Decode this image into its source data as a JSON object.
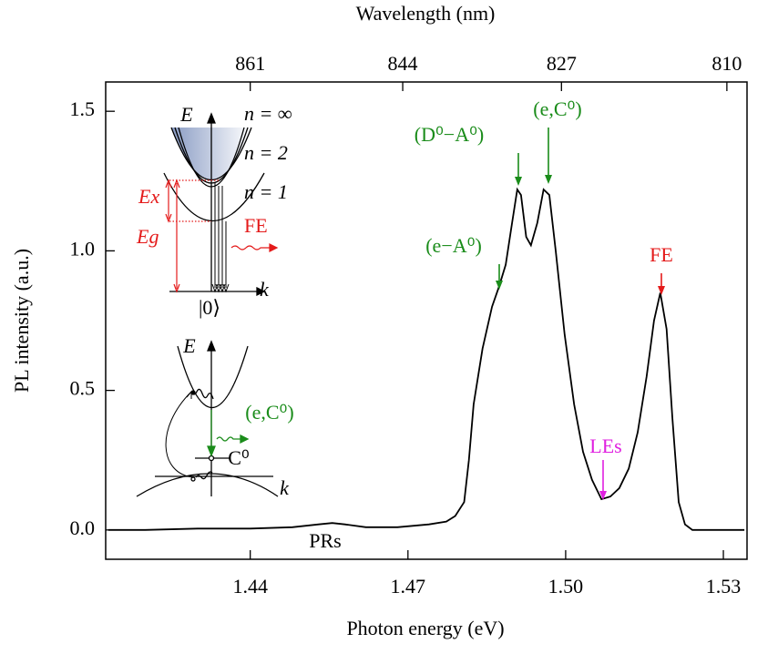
{
  "chart_data": {
    "type": "line",
    "title": "Wavelength (nm)",
    "x_label": "Photon energy (eV)",
    "y_label": "PL intensity (a.u.)",
    "xlim": [
      1.4125,
      1.5345
    ],
    "ylim": [
      -0.105,
      1.605
    ],
    "xticks": [
      1.44,
      1.47,
      {
        "value": 1.5,
        "label": "1.50"
      },
      1.53
    ],
    "yticks": [
      {
        "value": 0,
        "label": "0.0"
      },
      0.5,
      {
        "value": 1,
        "label": "1.0"
      },
      1.5
    ],
    "x2ticks": [
      861,
      844,
      827,
      810
    ],
    "color": "#000000",
    "x": [
      1.413,
      1.42,
      1.43,
      1.44,
      1.448,
      1.453,
      1.4556,
      1.458,
      1.462,
      1.468,
      1.474,
      1.4773,
      1.479,
      1.4807,
      1.4816,
      1.4825,
      1.4842,
      1.486,
      1.4873,
      1.4886,
      1.4898,
      1.4908,
      1.4915,
      1.4925,
      1.4934,
      1.4946,
      1.4958,
      1.4969,
      1.4981,
      1.4998,
      1.5016,
      1.5033,
      1.505,
      1.5068,
      1.5085,
      1.5102,
      1.512,
      1.5137,
      1.5154,
      1.5168,
      1.518,
      1.5192,
      1.5203,
      1.5215,
      1.5227,
      1.5241,
      1.534
    ],
    "values": [
      0,
      0,
      0.005,
      0.005,
      0.01,
      0.02,
      0.025,
      0.02,
      0.01,
      0.01,
      0.02,
      0.03,
      0.05,
      0.1,
      0.25,
      0.45,
      0.65,
      0.8,
      0.87,
      0.95,
      1.1,
      1.22,
      1.2,
      1.05,
      1.02,
      1.1,
      1.22,
      1.2,
      1.0,
      0.7,
      0.45,
      0.28,
      0.18,
      0.11,
      0.12,
      0.15,
      0.22,
      0.35,
      0.55,
      0.75,
      0.85,
      0.72,
      0.4,
      0.1,
      0.02,
      0,
      0
    ],
    "annotations": [
      {
        "text": "(e−A⁰)",
        "color": "#1a8c1a"
      },
      {
        "text": "(D⁰−A⁰)",
        "color": "#1a8c1a"
      },
      {
        "text": "(e,C⁰)",
        "color": "#1a8c1a"
      },
      {
        "text": "FE",
        "color": "#e41a1a"
      },
      {
        "text": "LEs",
        "color": "#e020e0"
      },
      {
        "text": "PRs",
        "color": "#000000"
      }
    ],
    "inset_labels": {
      "E1": "E",
      "n_inf": "n = ∞",
      "n2": "n = 2",
      "n1": "n = 1",
      "Ex": "Ex",
      "Eg": "Eg",
      "FE": "FE",
      "k1": "k",
      "ground": "|0⟩",
      "E2": "E",
      "eC": "(e,C⁰)",
      "C0": "C⁰",
      "k2": "k"
    }
  }
}
